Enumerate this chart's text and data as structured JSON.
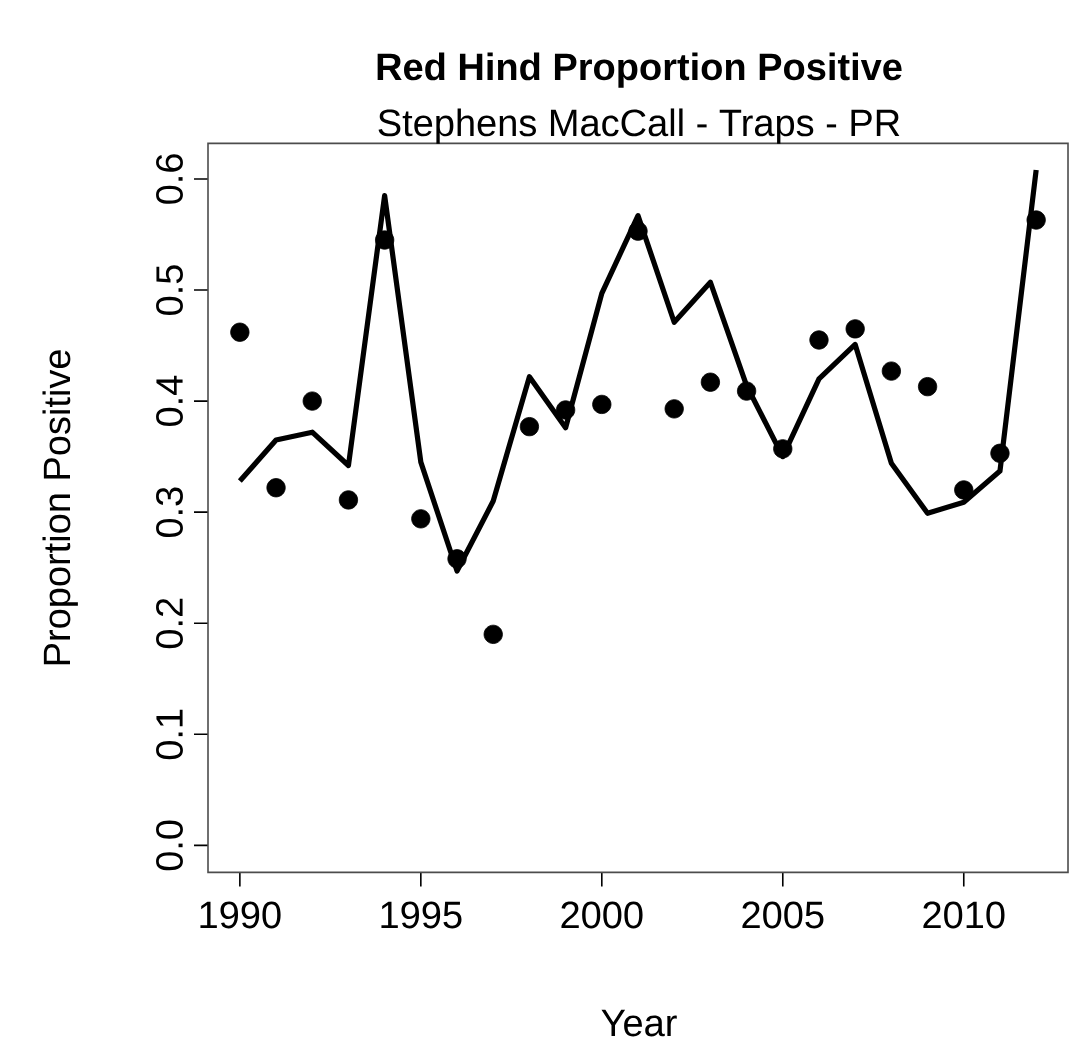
{
  "chart_data": {
    "type": "line",
    "title": "Red Hind Proportion Positive",
    "subtitle": "Stephens MacCall - Traps - PR",
    "xlabel": "Year",
    "ylabel": "Proportion Positive",
    "xlim": [
      1989.12,
      2012.88
    ],
    "ylim": [
      -0.0243,
      0.632
    ],
    "xticks": [
      1990,
      1995,
      2000,
      2005,
      2010
    ],
    "yticks": [
      {
        "value": 0,
        "label": "0.0"
      },
      {
        "value": 0.1,
        "label": "0.1"
      },
      {
        "value": 0.2,
        "label": "0.2"
      },
      {
        "value": 0.3,
        "label": "0.3"
      },
      {
        "value": 0.4,
        "label": "0.4"
      },
      {
        "value": 0.5,
        "label": "0.5"
      },
      {
        "value": 0.6,
        "label": "0.6"
      }
    ],
    "x": [
      1990,
      1991,
      1992,
      1993,
      1994,
      1995,
      1996,
      1997,
      1998,
      1999,
      2000,
      2001,
      2002,
      2003,
      2004,
      2005,
      2006,
      2007,
      2008,
      2009,
      2010,
      2011,
      2012
    ],
    "series": [
      {
        "type": "scatter",
        "marker": "circle",
        "color": "#000000",
        "values": [
          0.462,
          0.322,
          0.4,
          0.311,
          0.545,
          0.294,
          0.258,
          0.19,
          0.377,
          0.392,
          0.397,
          0.553,
          0.393,
          0.417,
          0.409,
          0.357,
          0.455,
          0.465,
          0.427,
          0.413,
          0.32,
          0.353,
          0.563
        ]
      },
      {
        "line_style": "solid",
        "color": "#000000",
        "values": [
          0.328,
          0.365,
          0.372,
          0.342,
          0.585,
          0.345,
          0.247,
          0.31,
          0.422,
          0.376,
          0.497,
          0.567,
          0.471,
          0.507,
          0.414,
          0.35,
          0.42,
          0.451,
          0.344,
          0.299,
          0.309,
          0.337,
          0.608
        ]
      }
    ]
  }
}
